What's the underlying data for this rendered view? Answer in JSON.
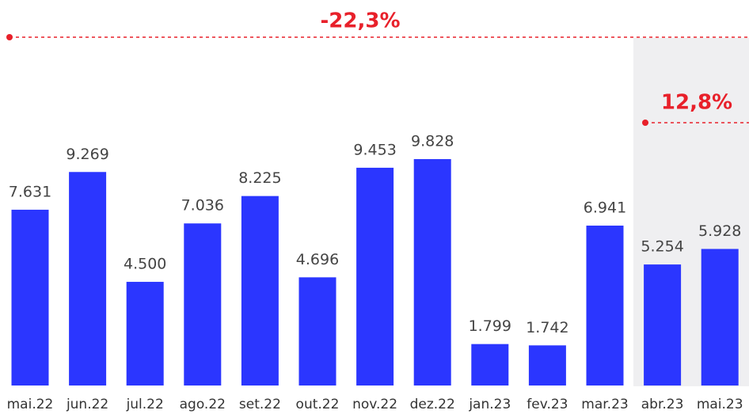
{
  "chart_data": {
    "type": "bar",
    "categories": [
      "mai.22",
      "jun.22",
      "jul.22",
      "ago.22",
      "set.22",
      "out.22",
      "nov.22",
      "dez.22",
      "jan.23",
      "fev.23",
      "mar.23",
      "abr.23",
      "mai.23"
    ],
    "values": [
      7631,
      9269,
      4500,
      7036,
      8225,
      4696,
      9453,
      9828,
      1799,
      1742,
      6941,
      5254,
      5928
    ],
    "value_labels": [
      "7.631",
      "9.269",
      "4.500",
      "7.036",
      "8.225",
      "4.696",
      "9.453",
      "9.828",
      "1.799",
      "1.742",
      "6.941",
      "5.254",
      "5.928"
    ],
    "color": "#2b36ff",
    "annotations": [
      "-22,3%",
      "12,8%"
    ]
  }
}
